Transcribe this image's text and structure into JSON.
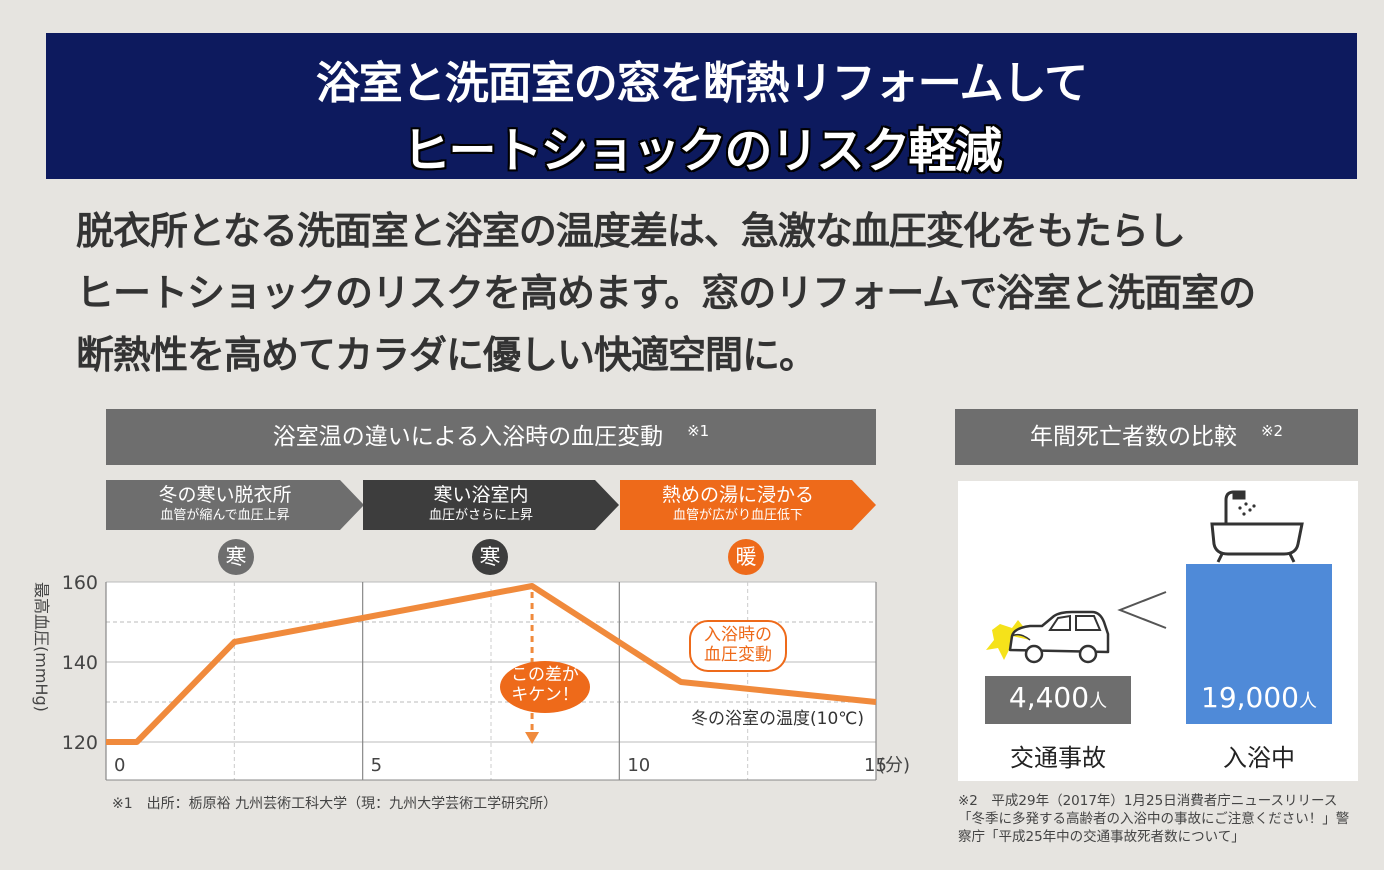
{
  "banner": {
    "line1": "浴室と洗面室の窓を断熱リフォームして",
    "line2": "ヒートショックのリスク軽減"
  },
  "intro": [
    "脱衣所となる洗面室と浴室の温度差は、急激な血圧変化をもたらし",
    "ヒートショックのリスクを高めます。窓のリフォームで浴室と洗面室の",
    "断熱性を高めてカラダに優しい快適空間に。"
  ],
  "left_header": {
    "title": "浴室温の違いによる入浴時の血圧変動",
    "mark": "※1"
  },
  "phases": [
    {
      "label": "冬の寒い脱衣所",
      "sub": "血管が縮んで血圧上昇",
      "badge": "寒",
      "color": "#6e6e6e"
    },
    {
      "label": "寒い浴室内",
      "sub": "血圧がさらに上昇",
      "badge": "寒",
      "color": "#3d3d3d"
    },
    {
      "label": "熱めの湯に浸かる",
      "sub": "血管が広がり血圧低下",
      "badge": "暖",
      "color": "#ee6a1a"
    }
  ],
  "chart_data": {
    "type": "line",
    "ylabel": "最高血圧(mmHg)",
    "y_ticks": [
      "160",
      "140",
      "120"
    ],
    "x_ticks": [
      "0",
      "5",
      "10",
      "15"
    ],
    "x_unit": "(分)",
    "xlim": [
      0,
      15
    ],
    "ylim": [
      110,
      160
    ],
    "x": [
      0,
      0.6,
      2.5,
      5,
      8.3,
      11.2,
      15
    ],
    "y": [
      120,
      120,
      145,
      151,
      159,
      135,
      130
    ],
    "series_label": "冬の浴室の温度(10℃)",
    "annotation_gap": "この差が\nキケン！",
    "annotation_bath": "入浴時の\n血圧変動",
    "color": "#f08a3c"
  },
  "source1": "※1　出所：栃原裕 九州芸術工科大学（現：九州大学芸術工学研究所）",
  "right_header": {
    "title": "年間死亡者数の比較",
    "mark": "※2"
  },
  "comparison": {
    "left": {
      "value": "4,400",
      "unit": "人",
      "caption": "交通事故",
      "color": "#6e6e6e"
    },
    "right": {
      "value": "19,000",
      "unit": "人",
      "caption": "入浴中",
      "color": "#4f8ad8"
    },
    "symbol": "<"
  },
  "source2": "※2　平成29年（2017年）1月25日消費者庁ニュースリリース「冬季に多発する高齢者の入浴中の事故にご注意ください！」警察庁「平成25年中の交通事故死者数について」"
}
